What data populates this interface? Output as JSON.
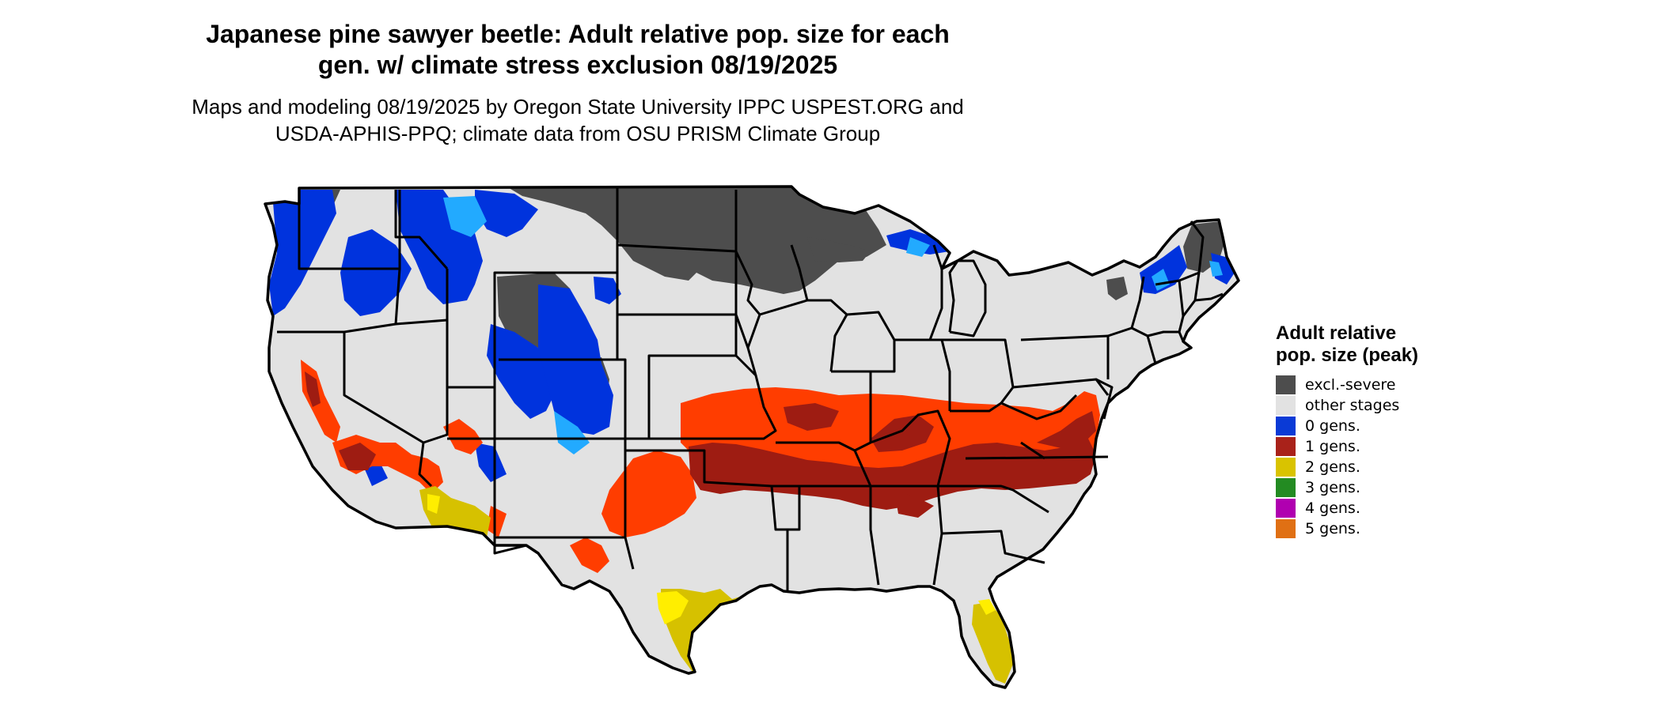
{
  "title": "Japanese pine sawyer beetle: Adult relative pop. size for each gen. w/ climate stress exclusion 08/19/2025",
  "subtitle": "Maps and modeling 08/19/2025 by Oregon State University IPPC USPEST.ORG and USDA-APHIS-PPQ; climate data from OSU PRISM Climate Group",
  "map": {
    "region": "contiguous-us",
    "colors": {
      "background_land": "#e2e2e2",
      "border": "#000000",
      "excl_severe": "#4d4d4d",
      "zero_gens": "#0033dd",
      "zero_gens_light": "#22aaff",
      "one_gen_dark": "#9e1c12",
      "one_gen_bright": "#ff3d00",
      "two_gens": "#d6c100",
      "two_gens_bright": "#ffee00"
    }
  },
  "legend": {
    "title": "Adult relative pop. size (peak)",
    "items": [
      {
        "label": "excl.-severe",
        "color": "#4d4d4d"
      },
      {
        "label": "other stages",
        "color": "#e2e2e2"
      },
      {
        "label": "0 gens.",
        "color": "#0a3ad6"
      },
      {
        "label": "1 gens.",
        "color": "#a9221a"
      },
      {
        "label": "2 gens.",
        "color": "#d9c300"
      },
      {
        "label": "3 gens.",
        "color": "#238b22"
      },
      {
        "label": "4 gens.",
        "color": "#b000b0"
      },
      {
        "label": "5 gens.",
        "color": "#e07014"
      }
    ]
  }
}
